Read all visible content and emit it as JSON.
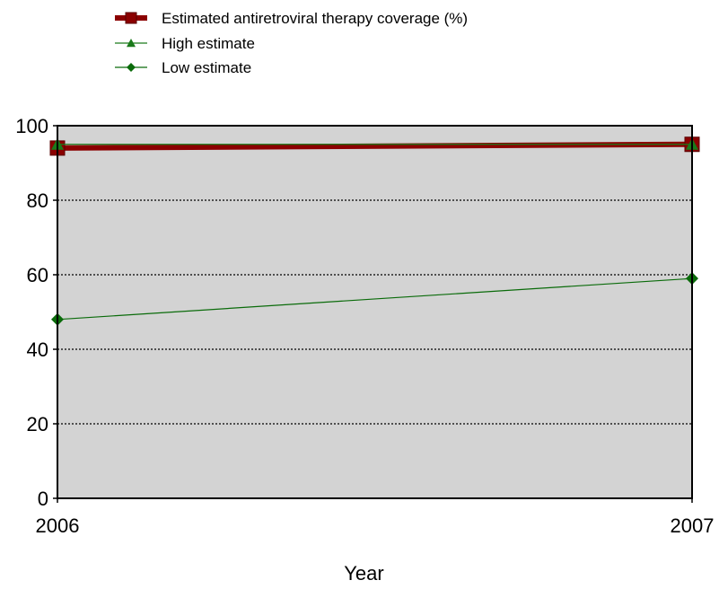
{
  "chart_data": {
    "type": "line",
    "x": [
      2006,
      2007
    ],
    "series": [
      {
        "name": "Estimated antiretroviral therapy coverage (%)",
        "values": [
          94,
          95
        ],
        "color": "#8b0000",
        "marker": "square",
        "line_style": "thick"
      },
      {
        "name": "High estimate",
        "values": [
          95,
          95
        ],
        "color": "#1a7a1a",
        "marker": "triangle",
        "line_style": "thin"
      },
      {
        "name": "Low estimate",
        "values": [
          48,
          59
        ],
        "color": "#0a6b0a",
        "marker": "diamond",
        "line_style": "thin"
      }
    ],
    "title": "",
    "xlabel": "Year",
    "ylabel": "",
    "xlim": [
      2006,
      2007
    ],
    "ylim": [
      0,
      100
    ],
    "y_ticks": [
      0,
      20,
      40,
      60,
      80,
      100
    ],
    "x_tick_labels": [
      "2006",
      "2007"
    ],
    "y_tick_labels": [
      "0",
      "20",
      "40",
      "60",
      "80",
      "100"
    ],
    "grid": "horizontal-dotted",
    "plot_background": "#d3d3d3",
    "legend_position": "top-center"
  }
}
